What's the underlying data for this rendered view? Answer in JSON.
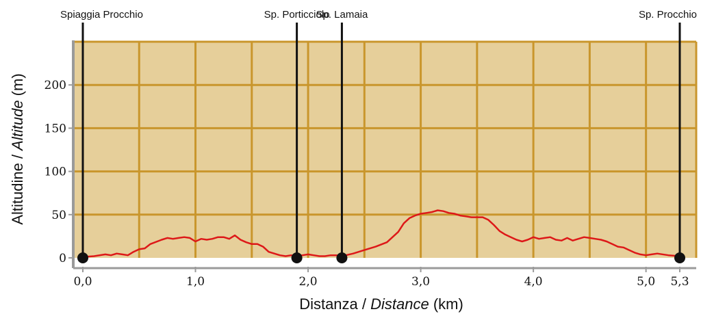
{
  "chart_data": {
    "type": "line",
    "xlabel": {
      "main": "Distanza / ",
      "italic": "Distance",
      "unit": " (km)"
    },
    "ylabel": {
      "main": "Altitudine / ",
      "italic": "Altitude",
      "unit": " (m)"
    },
    "xlim": [
      0,
      5.3
    ],
    "ylim": [
      0,
      250
    ],
    "x_ticks": [
      {
        "value": 0.0,
        "label": "0,0"
      },
      {
        "value": 1.0,
        "label": "1,0"
      },
      {
        "value": 2.0,
        "label": "2,0"
      },
      {
        "value": 3.0,
        "label": "3,0"
      },
      {
        "value": 4.0,
        "label": "4,0"
      },
      {
        "value": 5.0,
        "label": "5,0"
      },
      {
        "value": 5.3,
        "label": "5,3"
      }
    ],
    "y_ticks": [
      {
        "value": 0,
        "label": "0"
      },
      {
        "value": 50,
        "label": "50"
      },
      {
        "value": 100,
        "label": "100"
      },
      {
        "value": 150,
        "label": "150"
      },
      {
        "value": 200,
        "label": "200"
      }
    ],
    "grid": true,
    "background_color": "#e6cf9a",
    "grid_color": "#c9962c",
    "line_color": "#dd1818",
    "waypoint_color": "#111111",
    "series": [
      {
        "x": [
          0.0,
          0.1,
          0.2,
          0.25,
          0.3,
          0.35,
          0.4,
          0.45,
          0.5,
          0.55,
          0.6,
          0.7,
          0.75,
          0.8,
          0.85,
          0.9,
          0.95,
          1.0,
          1.05,
          1.1,
          1.15,
          1.2,
          1.25,
          1.3,
          1.35,
          1.4,
          1.45,
          1.5,
          1.55,
          1.6,
          1.65,
          1.7,
          1.75,
          1.8,
          1.85,
          1.9,
          1.95,
          2.0,
          2.05,
          2.1,
          2.15,
          2.2,
          2.25,
          2.3,
          2.4,
          2.5,
          2.6,
          2.7,
          2.8,
          2.85,
          2.9,
          2.95,
          3.0,
          3.05,
          3.1,
          3.15,
          3.2,
          3.25,
          3.3,
          3.35,
          3.4,
          3.45,
          3.5,
          3.55,
          3.6,
          3.65,
          3.7,
          3.75,
          3.8,
          3.85,
          3.9,
          3.95,
          4.0,
          4.05,
          4.1,
          4.15,
          4.2,
          4.25,
          4.3,
          4.35,
          4.4,
          4.45,
          4.5,
          4.55,
          4.6,
          4.65,
          4.7,
          4.75,
          4.8,
          4.85,
          4.9,
          4.95,
          5.0,
          5.05,
          5.1,
          5.2,
          5.3
        ],
        "values": [
          1,
          2,
          4,
          3,
          5,
          4,
          3,
          7,
          10,
          11,
          16,
          21,
          23,
          22,
          23,
          24,
          23,
          19,
          22,
          21,
          22,
          24,
          24,
          22,
          26,
          21,
          18,
          16,
          16,
          13,
          7,
          5,
          3,
          2,
          3,
          2,
          3,
          4,
          3,
          2,
          2,
          3,
          3,
          2,
          5,
          9,
          13,
          18,
          30,
          40,
          46,
          49,
          51,
          52,
          53,
          55,
          54,
          52,
          51,
          49,
          48,
          47,
          47,
          47,
          44,
          38,
          31,
          27,
          24,
          21,
          19,
          21,
          24,
          22,
          23,
          24,
          21,
          20,
          23,
          20,
          22,
          24,
          23,
          22,
          21,
          19,
          16,
          13,
          12,
          9,
          6,
          4,
          3,
          4,
          5,
          3,
          2
        ]
      }
    ],
    "waypoints": [
      {
        "x": 0.0,
        "label": "Spiaggia Procchio"
      },
      {
        "x": 1.9,
        "label": "Sp. Porticciolo"
      },
      {
        "x": 2.3,
        "label": "Sp. Lamaia"
      },
      {
        "x": 5.3,
        "label": "Sp. Procchio"
      }
    ]
  }
}
